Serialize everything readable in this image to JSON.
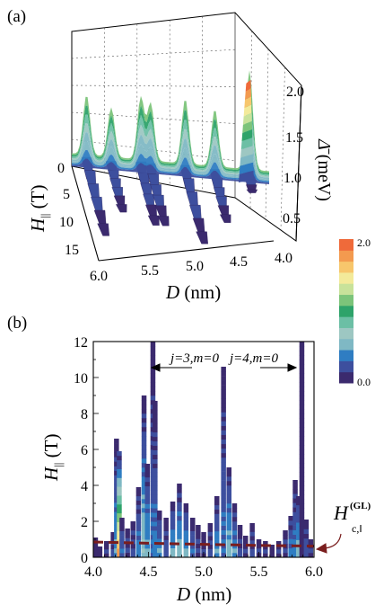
{
  "chart_data": [
    {
      "panel_label": "(a)",
      "type": "surface",
      "xlabel": "D (nm)",
      "ylabel": "H‖ (T)",
      "zlabel": "Δ̄ (meV)",
      "x_ticks": [
        "6.0",
        "5.5",
        "5.0",
        "4.5",
        "4.0"
      ],
      "y_ticks": [
        "0",
        "5",
        "10",
        "15"
      ],
      "z_ticks": [
        "0.5",
        "1.0",
        "1.5",
        "2.0"
      ],
      "xlim": [
        4.0,
        6.0
      ],
      "ylim": [
        0,
        15
      ],
      "zlim": [
        0,
        2.0
      ],
      "ridges": [
        {
          "D": 5.85,
          "peak_gap": 1.15,
          "hmax": 11
        },
        {
          "D": 5.6,
          "peak_gap": 0.95,
          "hmax": 7
        },
        {
          "D": 5.3,
          "peak_gap": 1.2,
          "hmax": 9
        },
        {
          "D": 5.2,
          "peak_gap": 1.1,
          "hmax": 9
        },
        {
          "D": 4.85,
          "peak_gap": 1.25,
          "hmax": 12
        },
        {
          "D": 4.55,
          "peak_gap": 1.1,
          "hmax": 8
        },
        {
          "D": 4.2,
          "peak_gap": 1.9,
          "hmax": 2
        }
      ],
      "colorbar": {
        "min": "0.0",
        "max": "2.0",
        "colors": [
          "#3b2a6e",
          "#3d4f9e",
          "#2f7dc2",
          "#7fb8c4",
          "#9dc7c2",
          "#6cbfa5",
          "#2ea36a",
          "#7cc47a",
          "#c8e29a",
          "#f3ea9a",
          "#f7c66c",
          "#f39a4f",
          "#ef6a3a"
        ]
      },
      "grid": true
    },
    {
      "panel_label": "(b)",
      "type": "heatmap",
      "xlabel": "D (nm)",
      "ylabel": "H‖ (T)",
      "xlim": [
        4.0,
        6.0
      ],
      "ylim": [
        0,
        12
      ],
      "x_ticks": [
        "4.0",
        "4.5",
        "5.0",
        "5.5",
        "6.0"
      ],
      "y_ticks": [
        "0",
        "2",
        "4",
        "6",
        "8",
        "10",
        "12"
      ],
      "columns": [
        {
          "D": 4.02,
          "h": 1.1,
          "c": 0.05
        },
        {
          "D": 4.06,
          "h": 0.6,
          "c": 0.05
        },
        {
          "D": 4.12,
          "h": 0.9,
          "c": 0.1
        },
        {
          "D": 4.18,
          "h": 1.4,
          "c": 0.2
        },
        {
          "D": 4.21,
          "h": 6.6,
          "c": 0.45
        },
        {
          "D": 4.235,
          "h": 5.9,
          "c": 1.8
        },
        {
          "D": 4.26,
          "h": 2.2,
          "c": 0.3
        },
        {
          "D": 4.31,
          "h": 1.6,
          "c": 0.15
        },
        {
          "D": 4.36,
          "h": 2.0,
          "c": 0.2
        },
        {
          "D": 4.41,
          "h": 3.9,
          "c": 0.4
        },
        {
          "D": 4.46,
          "h": 9.0,
          "c": 0.6
        },
        {
          "D": 4.49,
          "h": 5.2,
          "c": 0.5
        },
        {
          "D": 4.54,
          "h": 12.0,
          "c": 0.3
        },
        {
          "D": 4.56,
          "h": 8.7,
          "c": 0.35
        },
        {
          "D": 4.6,
          "h": 2.6,
          "c": 0.45
        },
        {
          "D": 4.66,
          "h": 2.2,
          "c": 0.25
        },
        {
          "D": 4.72,
          "h": 3.1,
          "c": 0.5
        },
        {
          "D": 4.78,
          "h": 4.1,
          "c": 0.55
        },
        {
          "D": 4.84,
          "h": 3.0,
          "c": 0.5
        },
        {
          "D": 4.9,
          "h": 2.2,
          "c": 0.3
        },
        {
          "D": 4.95,
          "h": 1.8,
          "c": 0.15
        },
        {
          "D": 5.0,
          "h": 1.4,
          "c": 0.1
        },
        {
          "D": 5.06,
          "h": 1.9,
          "c": 0.2
        },
        {
          "D": 5.12,
          "h": 3.4,
          "c": 0.45
        },
        {
          "D": 5.18,
          "h": 10.6,
          "c": 0.3
        },
        {
          "D": 5.23,
          "h": 5.0,
          "c": 0.55
        },
        {
          "D": 5.28,
          "h": 3.0,
          "c": 0.45
        },
        {
          "D": 5.33,
          "h": 1.8,
          "c": 0.2
        },
        {
          "D": 5.38,
          "h": 1.2,
          "c": 0.1
        },
        {
          "D": 5.44,
          "h": 1.9,
          "c": 0.2
        },
        {
          "D": 5.5,
          "h": 1.0,
          "c": 0.1
        },
        {
          "D": 5.56,
          "h": 0.9,
          "c": 0.1
        },
        {
          "D": 5.62,
          "h": 0.7,
          "c": 0.05
        },
        {
          "D": 5.68,
          "h": 0.9,
          "c": 0.1
        },
        {
          "D": 5.74,
          "h": 1.5,
          "c": 0.15
        },
        {
          "D": 5.79,
          "h": 2.3,
          "c": 0.35
        },
        {
          "D": 5.83,
          "h": 4.3,
          "c": 0.35
        },
        {
          "D": 5.86,
          "h": 3.4,
          "c": 0.55
        },
        {
          "D": 5.89,
          "h": 12.0,
          "c": 0.0
        },
        {
          "D": 5.93,
          "h": 2.1,
          "c": 0.25
        },
        {
          "D": 5.97,
          "h": 1.0,
          "c": 0.1
        }
      ],
      "gl_curve": {
        "D": [
          4.0,
          4.5,
          5.0,
          5.5,
          6.0
        ],
        "H": [
          0.85,
          0.78,
          0.72,
          0.66,
          0.62
        ]
      },
      "annotations": [
        {
          "text": "j=3,m=0",
          "D": 4.72,
          "H": 10.9,
          "arrow_to_D": 4.52
        },
        {
          "text": "j=4,m=0",
          "D": 5.52,
          "H": 10.9,
          "arrow_to_D": 5.9
        }
      ],
      "gl_label": "H",
      "gl_sup": "(GL)",
      "gl_sub": "c,‖"
    }
  ]
}
